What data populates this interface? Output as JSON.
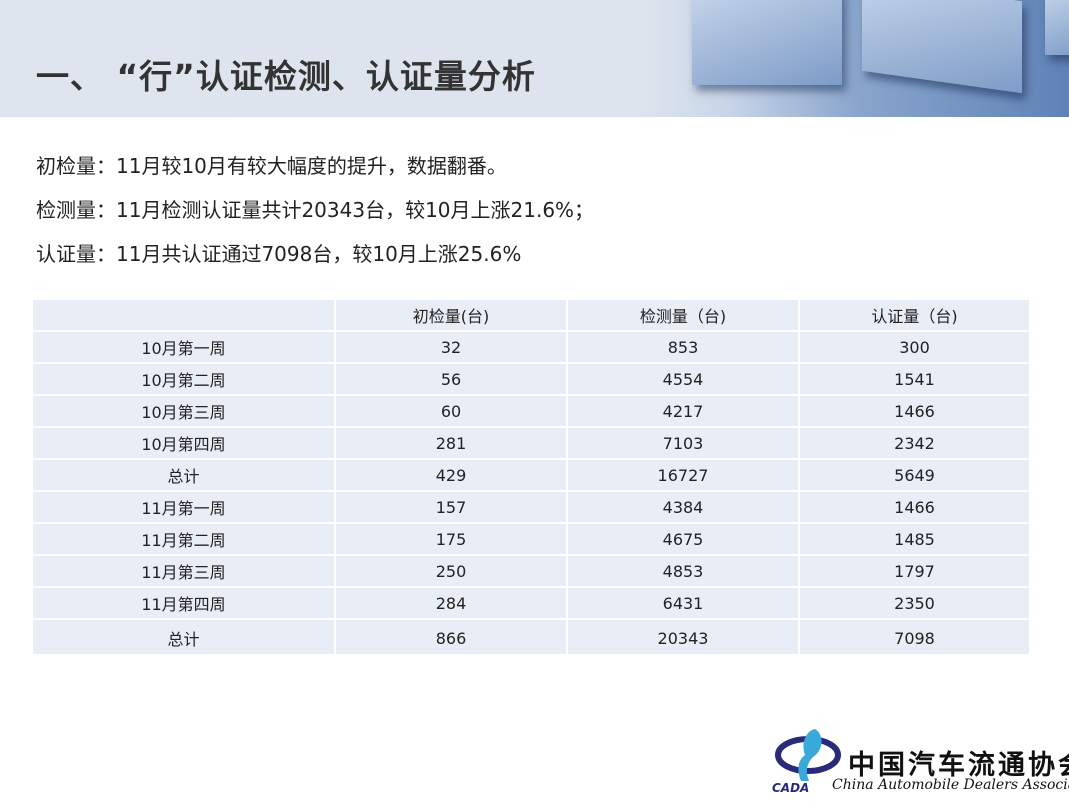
{
  "header": {
    "title": "一、 “行”认证检测、认证量分析"
  },
  "summary": [
    "初检量：11月较10月有较大幅度的提升，数据翻番。",
    "检测量：11月检测认证量共计20343台，较10月上涨21.6%；",
    "认证量：11月共认证通过7098台，较10月上涨25.6%"
  ],
  "table": {
    "columns": [
      "",
      "初检量(台)",
      "检测量（台)",
      "认证量（台)"
    ],
    "rows": [
      [
        "10月第一周",
        "32",
        "853",
        "300"
      ],
      [
        "10月第二周",
        "56",
        "4554",
        "1541"
      ],
      [
        "10月第三周",
        "60",
        "4217",
        "1466"
      ],
      [
        "10月第四周",
        "281",
        "7103",
        "2342"
      ],
      [
        "总计",
        "429",
        "16727",
        "5649"
      ],
      [
        "11月第一周",
        "157",
        "4384",
        "1466"
      ],
      [
        "11月第二周",
        "175",
        "4675",
        "1485"
      ],
      [
        "11月第三周",
        "250",
        "4853",
        "1797"
      ],
      [
        "11月第四周",
        "284",
        "6431",
        "2350"
      ],
      [
        "总计",
        "866",
        "20343",
        "7098"
      ]
    ]
  },
  "logo": {
    "cn": "中国汽车流通协会",
    "en": "China Automobile Dealers Association",
    "abbr": "CADA"
  },
  "colors": {
    "cell_bg": "#e9edf6",
    "logo_blue": "#2a2a7a",
    "logo_cyan": "#3aa8d8"
  }
}
